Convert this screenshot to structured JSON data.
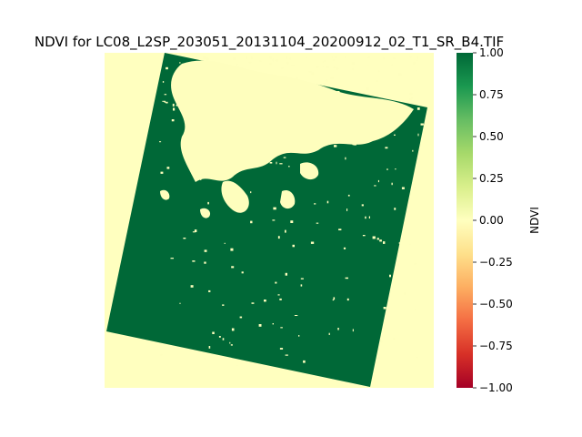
{
  "chart_data": {
    "type": "heatmap",
    "title": "NDVI for LC08_L2SP_203051_20131104_20200912_02_T1_SR_B4.TIF",
    "colorbar": {
      "label": "NDVI",
      "range": [
        -1.0,
        1.0
      ],
      "ticks": [
        1.0,
        0.75,
        0.5,
        0.25,
        0.0,
        -0.25,
        -0.5,
        -0.75,
        -1.0
      ],
      "tick_labels": [
        "1.00",
        "0.75",
        "0.50",
        "0.25",
        "0.00",
        "−0.25",
        "−0.50",
        "−0.75",
        "−1.00"
      ],
      "colormap": "RdYlGn",
      "colormap_stops": [
        "#a50026",
        "#d73027",
        "#f46d43",
        "#fdae61",
        "#fee08b",
        "#ffffbf",
        "#d9ef8b",
        "#a6d96a",
        "#66bd63",
        "#1a9850",
        "#006837"
      ]
    },
    "axes_visible": false,
    "grid": false,
    "background_value": 0.0,
    "dominant_value": 1.0,
    "colors": {
      "background": "#ffffbf",
      "dense_vegetation": "#006837",
      "sparse_vegetation": "#fefebd"
    }
  }
}
